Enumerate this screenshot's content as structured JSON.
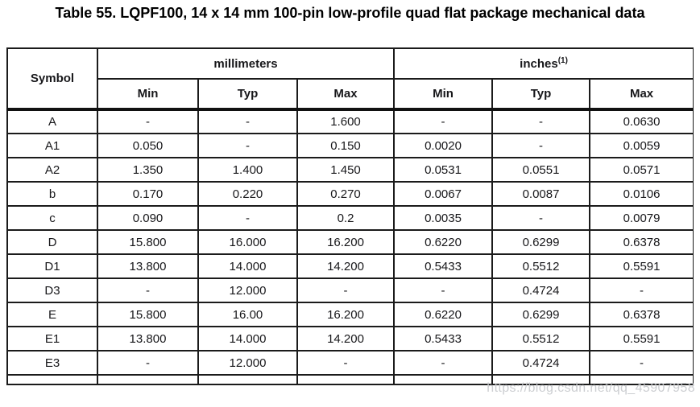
{
  "title": "Table 55. LQPF100, 14 x 14 mm 100-pin low-profile quad flat package mechanical data",
  "table": {
    "symbol_header": "Symbol",
    "mm_group": "millimeters",
    "in_group": "inches",
    "in_note": "(1)",
    "subheaders": [
      "Min",
      "Typ",
      "Max"
    ],
    "rows": [
      [
        "A",
        "-",
        "-",
        "1.600",
        "-",
        "-",
        "0.0630"
      ],
      [
        "A1",
        "0.050",
        "-",
        "0.150",
        "0.0020",
        "-",
        "0.0059"
      ],
      [
        "A2",
        "1.350",
        "1.400",
        "1.450",
        "0.0531",
        "0.0551",
        "0.0571"
      ],
      [
        "b",
        "0.170",
        "0.220",
        "0.270",
        "0.0067",
        "0.0087",
        "0.0106"
      ],
      [
        "c",
        "0.090",
        "-",
        "0.2",
        "0.0035",
        "-",
        "0.0079"
      ],
      [
        "D",
        "15.800",
        "16.000",
        "16.200",
        "0.6220",
        "0.6299",
        "0.6378"
      ],
      [
        "D1",
        "13.800",
        "14.000",
        "14.200",
        "0.5433",
        "0.5512",
        "0.5591"
      ],
      [
        "D3",
        "-",
        "12.000",
        "-",
        "-",
        "0.4724",
        "-"
      ],
      [
        "E",
        "15.800",
        "16.00",
        "16.200",
        "0.6220",
        "0.6299",
        "0.6378"
      ],
      [
        "E1",
        "13.800",
        "14.000",
        "14.200",
        "0.5433",
        "0.5512",
        "0.5591"
      ],
      [
        "E3",
        "-",
        "12.000",
        "-",
        "-",
        "0.4724",
        "-"
      ]
    ]
  },
  "watermark": {
    "text": "https://blog.csdn.net/qq_45907958"
  },
  "colors": {
    "text": "#17171a",
    "border": "#1b1b1b",
    "watermark": "#c7c9cd",
    "background": "#ffffff"
  }
}
